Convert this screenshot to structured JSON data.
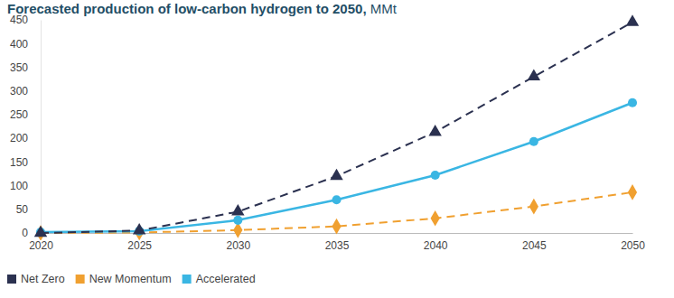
{
  "chart_data": {
    "type": "line",
    "title": "Forecasted production of low-carbon hydrogen to 2050, MMt",
    "x": [
      2020,
      2025,
      2030,
      2035,
      2040,
      2045,
      2050
    ],
    "xlim": [
      2020,
      2050
    ],
    "xticks": [
      2020,
      2025,
      2030,
      2035,
      2040,
      2045,
      2050
    ],
    "ylim": [
      0,
      450
    ],
    "yticks": [
      0,
      50,
      100,
      150,
      200,
      250,
      300,
      350,
      400,
      450
    ],
    "grid": false,
    "legend": "bottom-left",
    "series": [
      {
        "name": "Net Zero",
        "color": "#2b3150",
        "marker": "triangle",
        "line_style": "dashed",
        "values": [
          0,
          5,
          45,
          120,
          213,
          330,
          445
        ]
      },
      {
        "name": "New Momentum",
        "color": "#f0a030",
        "marker": "diamond",
        "line_style": "dashed",
        "values": [
          0,
          1,
          6,
          14,
          31,
          56,
          86
        ]
      },
      {
        "name": "Accelerated",
        "color": "#3ab6e3",
        "marker": "circle",
        "line_style": "solid",
        "values": [
          2,
          4,
          27,
          70,
          122,
          193,
          275
        ]
      }
    ]
  }
}
